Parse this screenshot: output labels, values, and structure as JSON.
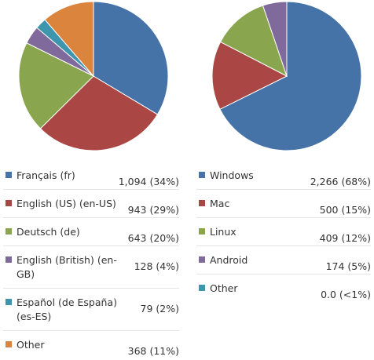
{
  "chart_data": [
    {
      "type": "pie",
      "slices": [
        {
          "label": "Français (fr)",
          "value": 1094,
          "value_text": "1,094 (34%)",
          "color": "#4572a7"
        },
        {
          "label": "English (US) (en-US)",
          "value": 943,
          "value_text": "943 (29%)",
          "color": "#aa4643"
        },
        {
          "label": "Deutsch (de)",
          "value": 643,
          "value_text": "643 (20%)",
          "color": "#89a54e"
        },
        {
          "label": "English (British) (en-GB)",
          "value": 128,
          "value_text": "128 (4%)",
          "color": "#80699b"
        },
        {
          "label": "Español (de España) (es-ES)",
          "value": 79,
          "value_text": "79 (2%)",
          "color": "#3d96ae"
        },
        {
          "label": "Other",
          "value": 368,
          "value_text": "368 (11%)",
          "color": "#db843d"
        }
      ]
    },
    {
      "type": "pie",
      "slices": [
        {
          "label": "Windows",
          "value": 2266,
          "value_text": "2,266 (68%)",
          "color": "#4572a7"
        },
        {
          "label": "Mac",
          "value": 500,
          "value_text": "500 (15%)",
          "color": "#aa4643"
        },
        {
          "label": "Linux",
          "value": 409,
          "value_text": "409 (12%)",
          "color": "#89a54e"
        },
        {
          "label": "Android",
          "value": 174,
          "value_text": "174 (5%)",
          "color": "#80699b"
        },
        {
          "label": "Other",
          "value": 0,
          "value_text": "0.0 (<1%)",
          "color": "#3d96ae"
        }
      ]
    }
  ]
}
